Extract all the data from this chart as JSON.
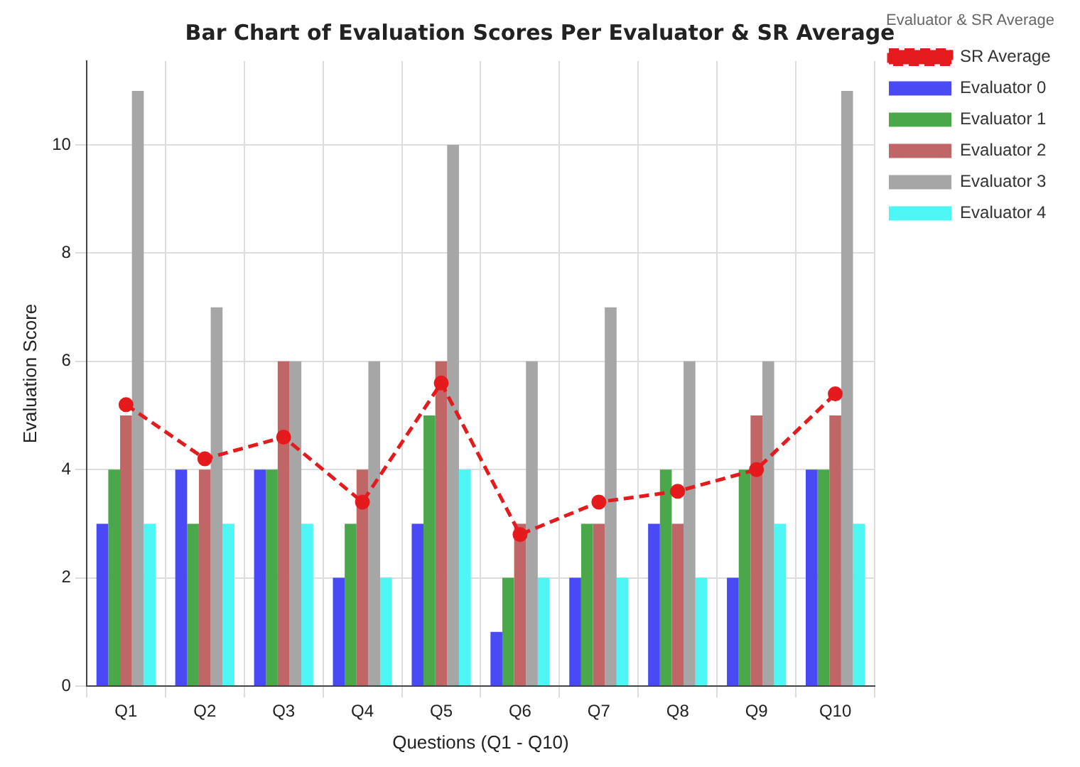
{
  "chart_data": {
    "type": "bar",
    "title": "Bar Chart of Evaluation Scores Per Evaluator & SR Average",
    "xlabel": "Questions (Q1 - Q10)",
    "ylabel": "Evaluation Score",
    "legend_title": "Evaluator & SR Average",
    "categories": [
      "Q1",
      "Q2",
      "Q3",
      "Q4",
      "Q5",
      "Q6",
      "Q7",
      "Q8",
      "Q9",
      "Q10"
    ],
    "series": [
      {
        "name": "SR Average",
        "type": "line",
        "color": "#e41a1c",
        "line_style": "dashed",
        "marker": "circle",
        "values": [
          5.2,
          4.2,
          4.6,
          3.4,
          5.6,
          2.8,
          3.4,
          3.6,
          4.0,
          5.4
        ]
      },
      {
        "name": "Evaluator 0",
        "color": "#4a4af5",
        "values": [
          3,
          4,
          4,
          2,
          3,
          1,
          2,
          3,
          2,
          4
        ]
      },
      {
        "name": "Evaluator 1",
        "color": "#4aa84a",
        "values": [
          4,
          3,
          4,
          3,
          5,
          2,
          3,
          4,
          4,
          4
        ]
      },
      {
        "name": "Evaluator 2",
        "color": "#c06666",
        "values": [
          5,
          4,
          6,
          4,
          6,
          3,
          3,
          3,
          5,
          5
        ]
      },
      {
        "name": "Evaluator 3",
        "color": "#a6a6a6",
        "values": [
          11,
          7,
          6,
          6,
          10,
          6,
          7,
          6,
          6,
          11
        ]
      },
      {
        "name": "Evaluator 4",
        "color": "#4df5f5",
        "values": [
          3,
          3,
          3,
          2,
          4,
          2,
          2,
          2,
          3,
          3
        ]
      }
    ],
    "ylim": [
      0,
      11.55
    ],
    "yticks": [
      0,
      2,
      4,
      6,
      8,
      10
    ],
    "grid": true,
    "legend": "right"
  }
}
